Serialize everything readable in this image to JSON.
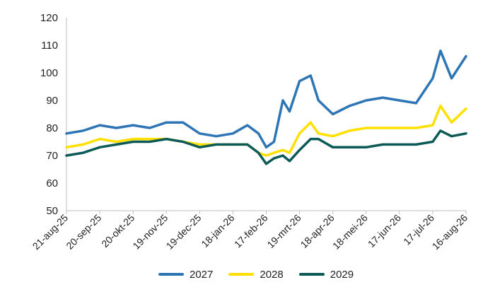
{
  "chart_data": {
    "type": "line",
    "title": "",
    "xlabel": "",
    "ylabel": "",
    "ylim": [
      50,
      120
    ],
    "yticks": [
      50,
      60,
      70,
      80,
      90,
      100,
      110,
      120
    ],
    "x_ticks": [
      "21-aug-25",
      "20-sep-25",
      "20-okt-25",
      "19-nov-25",
      "19-dec-25",
      "18-jan-26",
      "17-feb-26",
      "19-mrt-26",
      "18-apr-26",
      "18-mei-26",
      "17-jun-26",
      "17-jul-26",
      "16-aug-26"
    ],
    "x": [
      "2025-08-21",
      "2025-09-05",
      "2025-09-20",
      "2025-10-05",
      "2025-10-20",
      "2025-11-04",
      "2025-11-19",
      "2025-12-04",
      "2025-12-19",
      "2026-01-03",
      "2026-01-18",
      "2026-01-31",
      "2026-02-10",
      "2026-02-17",
      "2026-02-24",
      "2026-03-04",
      "2026-03-10",
      "2026-03-19",
      "2026-03-29",
      "2026-04-05",
      "2026-04-18",
      "2026-05-03",
      "2026-05-18",
      "2026-06-02",
      "2026-06-17",
      "2026-07-02",
      "2026-07-17",
      "2026-07-24",
      "2026-08-03",
      "2026-08-16"
    ],
    "grid": false,
    "legend_position": "bottom",
    "series": [
      {
        "name": "2027",
        "color": "#2e75b6",
        "values": [
          78,
          79,
          81,
          80,
          81,
          80,
          82,
          82,
          78,
          77,
          78,
          81,
          78,
          73,
          75,
          90,
          86,
          97,
          99,
          90,
          85,
          88,
          90,
          91,
          90,
          89,
          98,
          108,
          98,
          106
        ]
      },
      {
        "name": "2028",
        "color": "#ffe000",
        "values": [
          73,
          74,
          76,
          75,
          76,
          76,
          76,
          75,
          74,
          74,
          74,
          74,
          71,
          70,
          71,
          72,
          71,
          78,
          82,
          78,
          77,
          79,
          80,
          80,
          80,
          80,
          81,
          88,
          82,
          87
        ]
      },
      {
        "name": "2029",
        "color": "#0c5a57",
        "values": [
          70,
          71,
          73,
          74,
          75,
          75,
          76,
          75,
          73,
          74,
          74,
          74,
          71,
          67,
          69,
          70,
          68,
          72,
          76,
          76,
          73,
          73,
          73,
          74,
          74,
          74,
          75,
          79,
          77,
          78
        ]
      }
    ]
  }
}
